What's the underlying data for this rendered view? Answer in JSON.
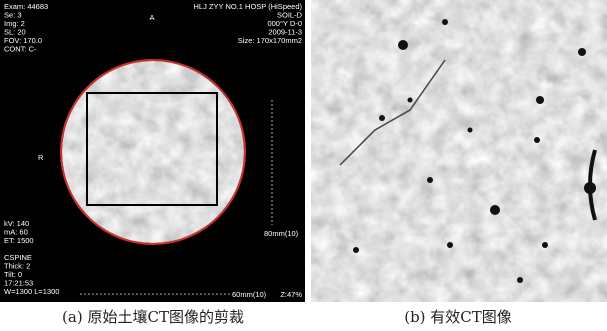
{
  "panels": [
    {
      "overlay_top_left": [
        "Exam: 44683",
        "Se: 3",
        "Img: 2",
        "SL: 20",
        "FOV: 170.0",
        "CONT: C-"
      ],
      "orientation_top": "A",
      "overlay_top_right": [
        "HLJ ZYY NO.1 HOSP (HiSpeed)",
        "SOIL-D",
        "000°Y D-0",
        "2009-11-3",
        "Size: 170x170mm2"
      ],
      "orientation_left": "R",
      "scale_right": "80mm(10)",
      "overlay_bottom_left": [
        "kV: 140",
        "mA: 60",
        "ET: 1500",
        "",
        "CSPINE",
        "Thick: 2",
        "Tilt: 0",
        "17:21:53",
        "W=1300 L=1300"
      ],
      "scale_bottom": "60mm(10)",
      "zoom": "Z:47%",
      "caption": "(a) 原始土壤CT图像的剪裁"
    },
    {
      "caption": "(b) 有效CT图像"
    }
  ]
}
